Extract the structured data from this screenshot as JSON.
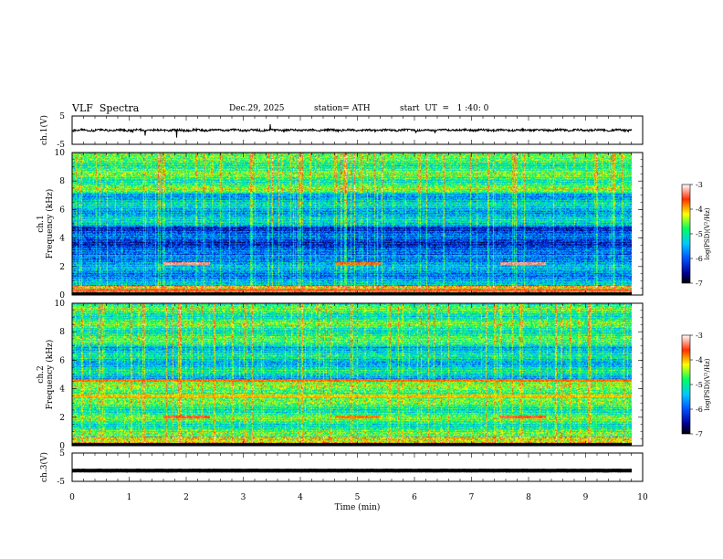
{
  "header": {
    "title": "VLF  Spectra",
    "date": "Dec.29, 2025",
    "station": "station= ATH",
    "start": "start  UT  =   1 :40: 0"
  },
  "chart_data": [
    {
      "type": "line",
      "panel": "ch1-waveform",
      "ylabel": "ch.1(V)",
      "ylim": [
        -5,
        5
      ],
      "yticks": [
        "5",
        "-5"
      ],
      "series": [
        {
          "mean": 0,
          "amplitude_approx": 1.0,
          "color": "#000000"
        }
      ]
    },
    {
      "type": "heatmap",
      "panel": "ch1-spectrogram",
      "ylabel_line1": "ch.1",
      "ylabel_line2": "Frequency  (kHz)",
      "ylim": [
        0,
        10
      ],
      "yticks": [
        "0",
        "2",
        "4",
        "6",
        "8",
        "10"
      ],
      "xlim": [
        0,
        10
      ],
      "colorbar": {
        "label": "log(PSD)(V²/Hz)",
        "range": [
          -7,
          -3
        ],
        "ticks": [
          "-3",
          "-4",
          "-5",
          "-6",
          "-7"
        ]
      },
      "features": [
        {
          "freq_khz": 2.2,
          "t_start_min": 1.6,
          "t_end_min": 2.4,
          "level": -3.3
        },
        {
          "freq_khz": 2.2,
          "t_start_min": 4.6,
          "t_end_min": 5.4,
          "level": -3.8
        },
        {
          "freq_khz": 2.2,
          "t_start_min": 7.5,
          "t_end_min": 8.3,
          "level": -3.3
        },
        {
          "freq_khz": 0.3,
          "t_start_min": 0,
          "t_end_min": 9.8,
          "level": -3.5
        }
      ]
    },
    {
      "type": "heatmap",
      "panel": "ch2-spectrogram",
      "ylabel_line1": "ch.2",
      "ylabel_line2": "Frequency  (kHz)",
      "ylim": [
        0,
        10
      ],
      "yticks": [
        "0",
        "2",
        "4",
        "6",
        "8",
        "10"
      ],
      "xlim": [
        0,
        10
      ],
      "colorbar": {
        "label": "log(PSD)(V²/Hz)",
        "range": [
          -7,
          -3
        ],
        "ticks": [
          "-3",
          "-4",
          "-5",
          "-6",
          "-7"
        ]
      },
      "features": [
        {
          "freq_khz": 2.0,
          "t_start_min": 1.6,
          "t_end_min": 2.4,
          "level": -3.5
        },
        {
          "freq_khz": 2.0,
          "t_start_min": 4.6,
          "t_end_min": 5.4,
          "level": -3.8
        },
        {
          "freq_khz": 2.0,
          "t_start_min": 7.5,
          "t_end_min": 8.3,
          "level": -3.5
        },
        {
          "freq_khz": 4.6,
          "t_start_min": 0,
          "t_end_min": 9.8,
          "level": -3.8
        },
        {
          "freq_khz": 3.5,
          "t_start_min": 0,
          "t_end_min": 9.8,
          "level": -4.0
        }
      ]
    },
    {
      "type": "line",
      "panel": "ch3-waveform",
      "ylabel": "ch.3(V)",
      "ylim": [
        -5,
        5
      ],
      "yticks": [
        "5",
        "-5"
      ],
      "series": [
        {
          "mean": -1.2,
          "amplitude_approx": 0.1,
          "color": "#000000"
        }
      ]
    }
  ],
  "x_axis": {
    "label": "Time  (min)",
    "ticks": [
      "0",
      "1",
      "2",
      "3",
      "4",
      "5",
      "6",
      "7",
      "8",
      "9",
      "10"
    ],
    "xlim": [
      0,
      10
    ],
    "data_end_min": 9.8
  }
}
